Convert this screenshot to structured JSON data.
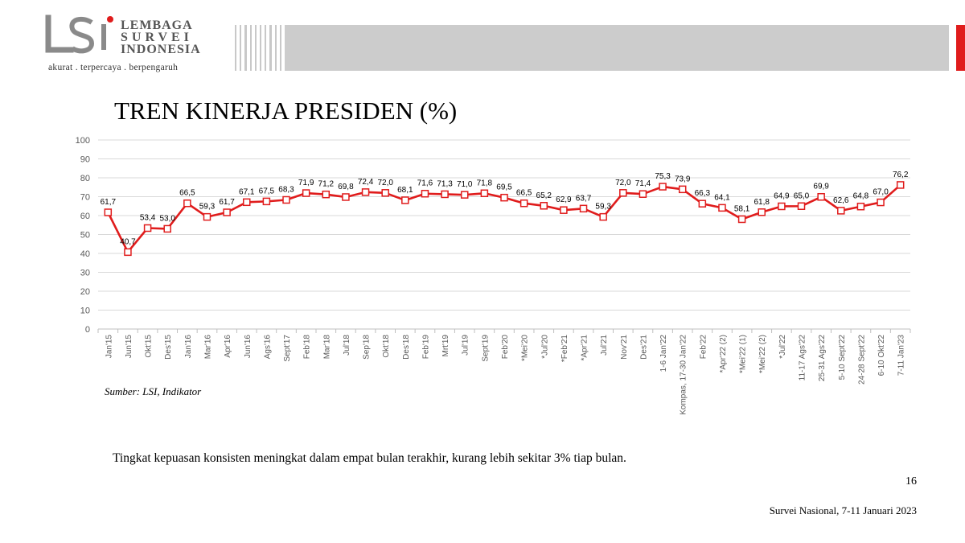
{
  "logo": {
    "lines": [
      "LEMBAGA",
      "SURVEI",
      "INDONESIA"
    ],
    "tagline": "akurat . terpercaya . berpengaruh"
  },
  "title": "TREN KINERJA PRESIDEN (%)",
  "source": "Sumber: LSI, Indikator",
  "caption": "Tingkat kepuasan konsisten meningkat dalam empat bulan terakhir, kurang lebih sekitar 3% tiap bulan.",
  "page_number": "16",
  "footer": "Survei Nasional, 7-11 Januari 2023",
  "colors": {
    "line": "#e01c1c",
    "marker": "#e01c1c",
    "grid": "#d9d9d9",
    "accent": "#e01c1c"
  },
  "chart_data": {
    "type": "line",
    "title": "",
    "xlabel": "",
    "ylabel": "",
    "ylim": [
      0,
      100
    ],
    "yticks": [
      0,
      10,
      20,
      30,
      40,
      50,
      60,
      70,
      80,
      90,
      100
    ],
    "grid": true,
    "categories": [
      "Jan'15",
      "Jun'15",
      "Okt'15",
      "Des'15",
      "Jan'16",
      "Mar'16",
      "Apr'16",
      "Jun'16",
      "Ags'16",
      "Sept'17",
      "Feb'18",
      "Mar'18",
      "Jul'18",
      "Sep'18",
      "Okt'18",
      "Des'18",
      "Feb'19",
      "Mrt'19",
      "Jul'19",
      "Sept'19",
      "Feb'20",
      "*Mei'20",
      "*Jul'20",
      "*Feb'21",
      "*Apr'21",
      "Jul'21",
      "Nov'21",
      "Des'21",
      "1-6 Jan'22",
      "Kompas, 17-30 Jan'22",
      "Feb'22",
      "*Apr'22 (2)",
      "*Mei'22 (1)",
      "*Mei'22 (2)",
      "*Jul'22",
      "11-17 Ags'22",
      "25-31 Ags'22",
      "5-10 Sept'22",
      "24-28 Sept'22",
      "6-10 Okt'22",
      "7-11 Jan'23"
    ],
    "series": [
      {
        "values": [
          61.7,
          40.7,
          53.4,
          53.0,
          66.5,
          59.3,
          61.7,
          67.1,
          67.5,
          68.3,
          71.9,
          71.2,
          69.8,
          72.4,
          72.0,
          68.1,
          71.6,
          71.3,
          71.0,
          71.8,
          69.5,
          66.5,
          65.2,
          62.9,
          63.7,
          59.3,
          72.0,
          71.4,
          75.3,
          73.9,
          66.3,
          64.1,
          58.1,
          61.8,
          64.9,
          65.0,
          69.9,
          62.6,
          64.8,
          67.0,
          76.2
        ],
        "labels": [
          "61,7",
          "40,7",
          "53,4",
          "53,0",
          "66,5",
          "59,3",
          "61,7",
          "67,1",
          "67,5",
          "68,3",
          "71,9",
          "71,2",
          "69,8",
          "72,4",
          "72,0",
          "68,1",
          "71,6",
          "71,3",
          "71,0",
          "71,8",
          "69,5",
          "66,5",
          "65,2",
          "62,9",
          "63,7",
          "59,3",
          "72,0",
          "71,4",
          "75,3",
          "73,9",
          "66,3",
          "64,1",
          "58,1",
          "61,8",
          "64,9",
          "65,0",
          "69,9",
          "62,6",
          "64,8",
          "67,0",
          "76,2"
        ]
      }
    ]
  }
}
